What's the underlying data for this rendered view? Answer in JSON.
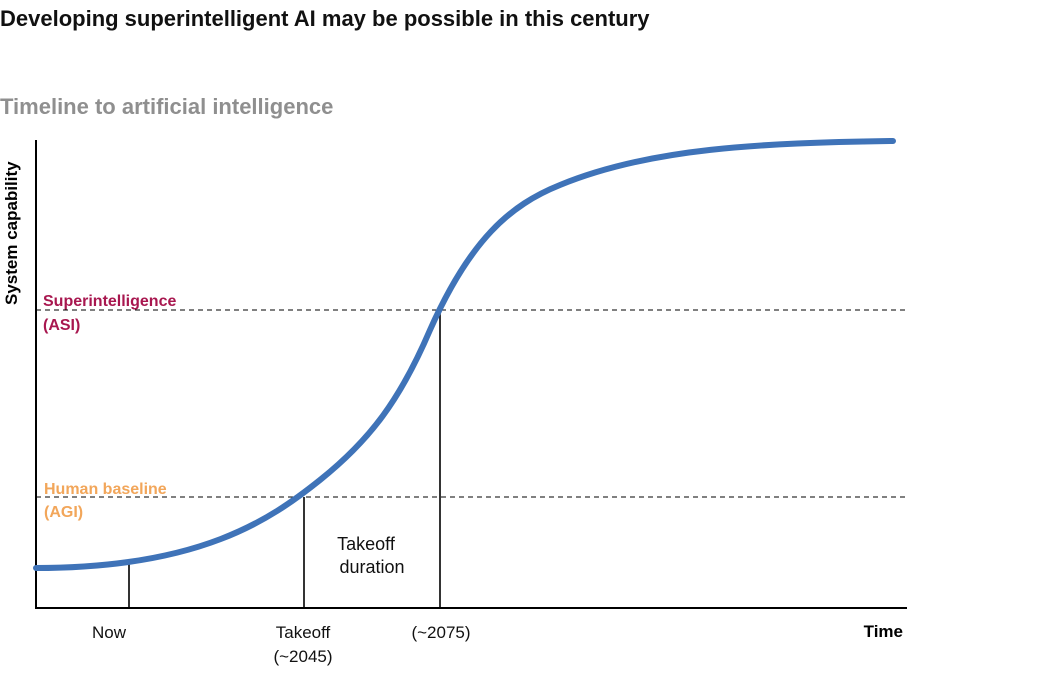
{
  "title": "Developing superintelligent AI may be possible in this century",
  "subtitle": "Timeline to artificial intelligence",
  "chart_data": {
    "type": "line",
    "xlabel": "Time",
    "ylabel": "System capability",
    "grid": false,
    "legend": "none",
    "series": [
      {
        "color": "#3f73b8",
        "curve": "s-curve (logistic)"
      }
    ],
    "levels": [
      {
        "label_line1": "Superintelligence",
        "label_line2": "(ASI)",
        "color": "#a8174f"
      },
      {
        "label_line1": "Human baseline",
        "label_line2": "(AGI)",
        "color": "#f2a65a"
      }
    ],
    "x_markers": [
      {
        "label_line1": "Now",
        "label_line2": ""
      },
      {
        "label_line1": "Takeoff",
        "label_line2": "(~2045)"
      },
      {
        "label_line1": "(~2075)",
        "label_line2": ""
      }
    ],
    "annotation": {
      "line1": "Takeoff",
      "line2": "duration"
    }
  }
}
